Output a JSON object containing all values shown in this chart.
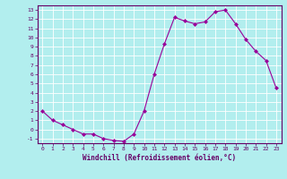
{
  "x": [
    0,
    1,
    2,
    3,
    4,
    5,
    6,
    7,
    8,
    9,
    10,
    11,
    12,
    13,
    14,
    15,
    16,
    17,
    18,
    19,
    20,
    21,
    22,
    23
  ],
  "y": [
    2,
    1,
    0.5,
    0,
    -0.5,
    -0.5,
    -1,
    -1.2,
    -1.3,
    -0.5,
    2,
    6,
    9.3,
    12.2,
    11.8,
    11.5,
    11.7,
    12.8,
    13,
    11.5,
    9.8,
    8.5,
    7.5,
    4.5
  ],
  "line_color": "#990099",
  "marker": "D",
  "marker_size": 2,
  "bg_color": "#b2eeee",
  "grid_color": "#ffffff",
  "xlabel": "Windchill (Refroidissement éolien,°C)",
  "xlim": [
    -0.5,
    23.5
  ],
  "ylim": [
    -1.5,
    13.5
  ],
  "yticks": [
    -1,
    0,
    1,
    2,
    3,
    4,
    5,
    6,
    7,
    8,
    9,
    10,
    11,
    12,
    13
  ],
  "xticks": [
    0,
    1,
    2,
    3,
    4,
    5,
    6,
    7,
    8,
    9,
    10,
    11,
    12,
    13,
    14,
    15,
    16,
    17,
    18,
    19,
    20,
    21,
    22,
    23
  ],
  "tick_color": "#660066",
  "label_color": "#660066",
  "spine_color": "#660066",
  "font_size_ticks": 4.5,
  "font_size_xlabel": 5.5
}
